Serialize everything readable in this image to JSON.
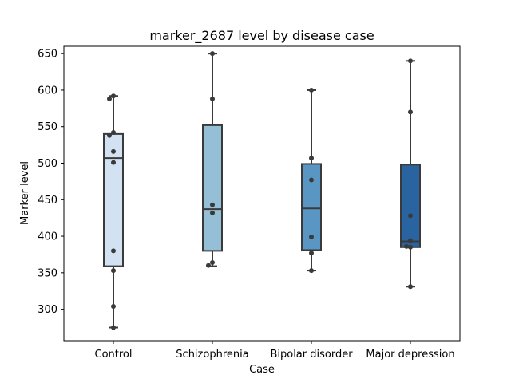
{
  "chart_data": {
    "type": "box",
    "title": "marker_2687 level by disease case",
    "xlabel": "Case",
    "ylabel": "Marker level",
    "ylim": [
      257,
      660
    ],
    "yticks": [
      300,
      350,
      400,
      450,
      500,
      550,
      600,
      650
    ],
    "grid": false,
    "categories": [
      "Control",
      "Schizophrenia",
      "Bipolar disorder",
      "Major depression"
    ],
    "boxes": [
      {
        "name": "Control",
        "color": "#d3e2f2",
        "whisker_low": 275,
        "q1": 359,
        "median": 507,
        "q3": 540,
        "whisker_high": 592,
        "points": [
          592,
          588,
          542,
          538,
          516,
          501,
          380,
          353,
          304,
          275
        ]
      },
      {
        "name": "Schizophrenia",
        "color": "#94bfd6",
        "whisker_low": 359,
        "q1": 380,
        "median": 437,
        "q3": 552,
        "whisker_high": 650,
        "points": [
          650,
          588,
          443,
          432,
          364,
          360
        ]
      },
      {
        "name": "Bipolar disorder",
        "color": "#5a96c4",
        "whisker_low": 353,
        "q1": 381,
        "median": 438,
        "q3": 499,
        "whisker_high": 600,
        "points": [
          600,
          507,
          477,
          399,
          377,
          353
        ]
      },
      {
        "name": "Major depression",
        "color": "#2a64a0",
        "whisker_low": 331,
        "q1": 385,
        "median": 393,
        "q3": 498,
        "whisker_high": 640,
        "points": [
          640,
          570,
          428,
          394,
          385,
          386,
          331
        ]
      }
    ]
  }
}
